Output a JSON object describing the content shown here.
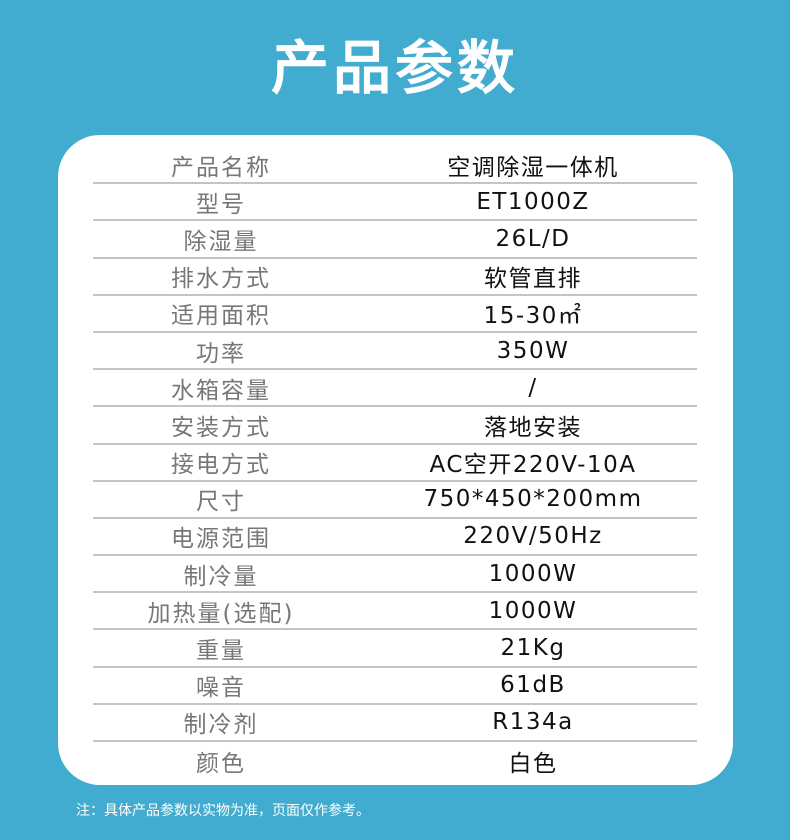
{
  "title": "产品参数",
  "specs": [
    {
      "label": "产品名称",
      "value": "空调除湿一体机"
    },
    {
      "label": "型号",
      "value": "ET1000Z"
    },
    {
      "label": "除湿量",
      "value": "26L/D"
    },
    {
      "label": "排水方式",
      "value": "软管直排"
    },
    {
      "label": "适用面积",
      "value": "15-30㎡"
    },
    {
      "label": "功率",
      "value": "350W"
    },
    {
      "label": "水箱容量",
      "value": "/"
    },
    {
      "label": "安装方式",
      "value": "落地安装"
    },
    {
      "label": "接电方式",
      "value": "AC空开220V-10A"
    },
    {
      "label": "尺寸",
      "value": "750*450*200mm"
    },
    {
      "label": "电源范围",
      "value": "220V/50Hz"
    },
    {
      "label": "制冷量",
      "value": "1000W"
    },
    {
      "label": "加热量(选配)",
      "value": "1000W"
    },
    {
      "label": "重量",
      "value": "21Kg"
    },
    {
      "label": "噪音",
      "value": "61dB"
    },
    {
      "label": "制冷剂",
      "value": "R134a"
    },
    {
      "label": "颜色",
      "value": "白色"
    }
  ],
  "note": "注：具体产品参数以实物为准，页面仅作参考。",
  "colors": {
    "background": "#41abd0",
    "card": "#ffffff",
    "label": "#777777",
    "value": "#111111"
  }
}
